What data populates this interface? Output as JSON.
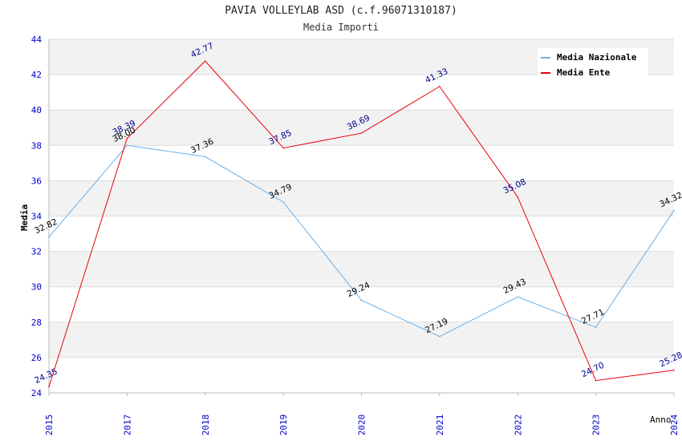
{
  "chart_data": {
    "type": "line",
    "title": "PAVIA VOLLEYLAB ASD (c.f.96071310187)",
    "subtitle": "Media Importi",
    "xlabel": "Anno",
    "ylabel": "Media",
    "ylim": [
      24,
      44
    ],
    "yticks": [
      24,
      26,
      28,
      30,
      32,
      34,
      36,
      38,
      40,
      42,
      44
    ],
    "categories": [
      "2015",
      "2017",
      "2018",
      "2019",
      "2020",
      "2021",
      "2022",
      "2023",
      "2024"
    ],
    "series": [
      {
        "name": "Media Nazionale",
        "color": "#6ab0e8",
        "label_color": "#000000",
        "values": [
          32.82,
          38.0,
          37.36,
          34.79,
          29.24,
          27.19,
          29.43,
          27.71,
          34.32
        ],
        "labels": [
          "32.82",
          "38.00",
          "37.36",
          "34.79",
          "29.24",
          "27.19",
          "29.43",
          "27.71",
          "34.32"
        ]
      },
      {
        "name": "Media Ente",
        "color": "#e8000b",
        "label_color": "#00008b",
        "values": [
          24.35,
          38.39,
          42.77,
          37.85,
          38.69,
          41.33,
          35.08,
          24.7,
          25.28
        ],
        "labels": [
          "24.35",
          "38.39",
          "42.77",
          "37.85",
          "38.69",
          "41.33",
          "35.08",
          "24.70",
          "25.28"
        ]
      }
    ],
    "legend": "top-right",
    "grid": true,
    "axis_tick_color": "#0000cc",
    "band_color": "#f2f2f2",
    "grid_color": "#dddddd"
  }
}
